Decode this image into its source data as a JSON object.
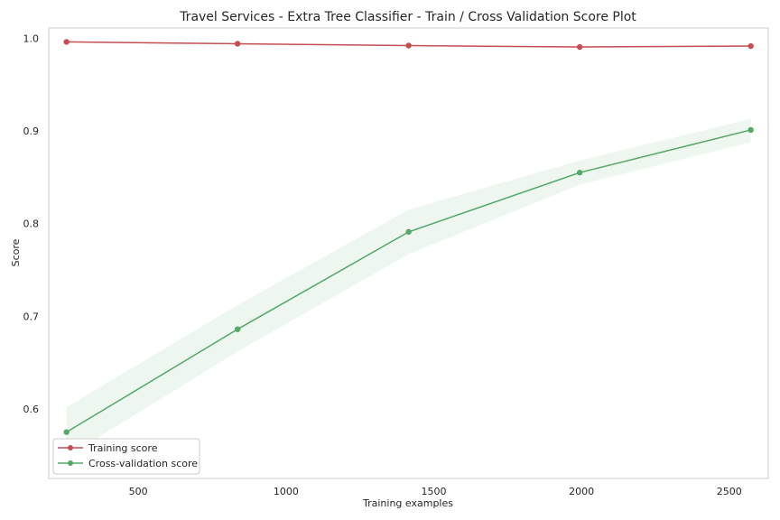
{
  "chart_data": {
    "type": "line",
    "title": "Travel Services - Extra Tree Classifier - Train / Cross Validation Score Plot",
    "xlabel": "Training examples",
    "ylabel": "Score",
    "xlim": [
      197,
      2632
    ],
    "ylim": [
      0.525,
      1.011
    ],
    "x_ticks": [
      500,
      1000,
      1500,
      2000,
      2500
    ],
    "y_ticks": [
      0.6,
      0.7,
      0.8,
      0.9,
      1.0
    ],
    "x_tick_labels": [
      "500",
      "1000",
      "1500",
      "2000",
      "2500"
    ],
    "y_tick_labels": [
      "0.6",
      "0.7",
      "0.8",
      "0.9",
      "1.0"
    ],
    "grid": false,
    "legend_position": "lower-left",
    "x": [
      257,
      836,
      1415,
      1994,
      2573
    ],
    "series": [
      {
        "name": "Training score",
        "color": "#c44e52",
        "values": [
          0.996,
          0.994,
          0.992,
          0.9905,
          0.9915
        ],
        "band_lower": [
          0.9955,
          0.9935,
          0.9915,
          0.99,
          0.991
        ],
        "band_upper": [
          0.9965,
          0.9945,
          0.9925,
          0.991,
          0.992
        ]
      },
      {
        "name": "Cross-validation score",
        "color": "#55a868",
        "values": [
          0.575,
          0.686,
          0.791,
          0.855,
          0.901
        ],
        "band_lower": [
          0.548,
          0.662,
          0.767,
          0.842,
          0.888
        ],
        "band_upper": [
          0.602,
          0.712,
          0.815,
          0.868,
          0.913
        ]
      }
    ]
  }
}
